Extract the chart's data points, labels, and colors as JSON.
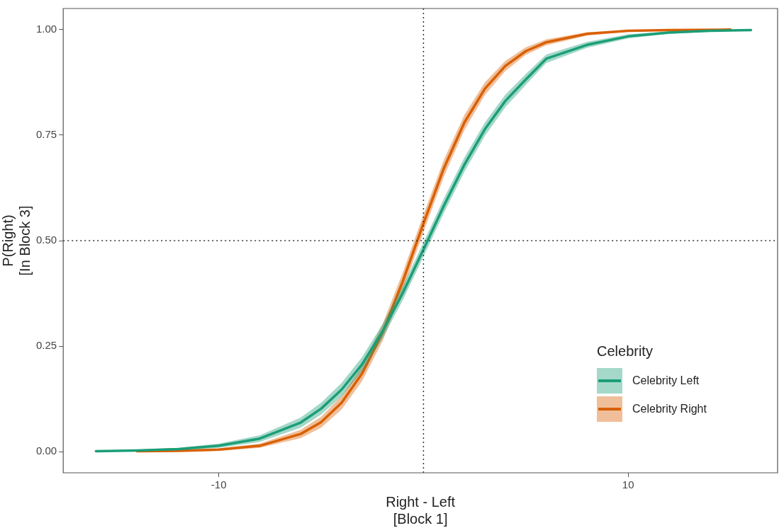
{
  "chart_data": {
    "type": "line",
    "xlabel": "Right - Left\n[Block 1]",
    "ylabel": "P(Right)\n[In Block 3]",
    "legend_title": "Celebrity",
    "xlim": [
      -17.6,
      17.3
    ],
    "ylim": [
      -0.05,
      1.05
    ],
    "xticks": [
      -10,
      10
    ],
    "yticks": [
      {
        "value": 0,
        "label": "0.00"
      },
      {
        "value": 0.25,
        "label": "0.25"
      },
      {
        "value": 0.5,
        "label": "0.50"
      },
      {
        "value": 0.75,
        "label": "0.75"
      },
      {
        "value": 1,
        "label": "1.00"
      }
    ],
    "grid": false,
    "legend": "bottom right",
    "marker": "none",
    "line_style": "solid",
    "ref_lines": [
      {
        "axis": "x",
        "value": 0,
        "line_style": "dotted",
        "color": "#333333"
      },
      {
        "axis": "y",
        "value": 0.5,
        "line_style": "dotted",
        "color": "#333333"
      }
    ],
    "series": [
      {
        "name": "Celebrity Left",
        "color": "#1b9e77",
        "x": [
          -16,
          -14,
          -12,
          -10,
          -8,
          -6,
          -5,
          -4,
          -3,
          -2,
          -1,
          0,
          1,
          2,
          3,
          4,
          5,
          6,
          8,
          10,
          12,
          14,
          16
        ],
        "values": [
          0.001,
          0.003,
          0.006,
          0.014,
          0.031,
          0.069,
          0.102,
          0.147,
          0.207,
          0.285,
          0.377,
          0.479,
          0.583,
          0.68,
          0.764,
          0.831,
          0.882,
          0.931,
          0.964,
          0.984,
          0.993,
          0.997,
          0.999
        ],
        "lower": [
          0,
          0.001,
          0.003,
          0.009,
          0.023,
          0.057,
          0.088,
          0.131,
          0.19,
          0.268,
          0.36,
          0.462,
          0.566,
          0.663,
          0.748,
          0.816,
          0.869,
          0.921,
          0.957,
          0.979,
          0.99,
          0.995,
          0.998
        ],
        "upper": [
          0.002,
          0.005,
          0.009,
          0.019,
          0.039,
          0.081,
          0.116,
          0.163,
          0.224,
          0.302,
          0.394,
          0.496,
          0.6,
          0.697,
          0.78,
          0.846,
          0.895,
          0.941,
          0.971,
          0.989,
          0.996,
          0.999,
          1
        ]
      },
      {
        "name": "Celebrity Right",
        "color": "#d95f02",
        "x": [
          -14,
          -12,
          -10,
          -8,
          -6,
          -5,
          -4,
          -3,
          -2,
          -1,
          0,
          1,
          2,
          3,
          4,
          5,
          6,
          8,
          10,
          12,
          15
        ],
        "values": [
          0.001,
          0.002,
          0.005,
          0.014,
          0.042,
          0.07,
          0.116,
          0.185,
          0.282,
          0.405,
          0.541,
          0.672,
          0.78,
          0.86,
          0.914,
          0.949,
          0.97,
          0.99,
          0.997,
          0.999,
          1
        ],
        "lower": [
          0,
          0,
          0.002,
          0.009,
          0.032,
          0.057,
          0.1,
          0.167,
          0.262,
          0.384,
          0.52,
          0.652,
          0.762,
          0.845,
          0.902,
          0.94,
          0.963,
          0.986,
          0.995,
          0.998,
          0.999
        ],
        "upper": [
          0.002,
          0.004,
          0.008,
          0.019,
          0.052,
          0.083,
          0.132,
          0.203,
          0.302,
          0.426,
          0.562,
          0.692,
          0.798,
          0.875,
          0.926,
          0.958,
          0.977,
          0.994,
          0.999,
          1,
          1
        ]
      }
    ]
  }
}
